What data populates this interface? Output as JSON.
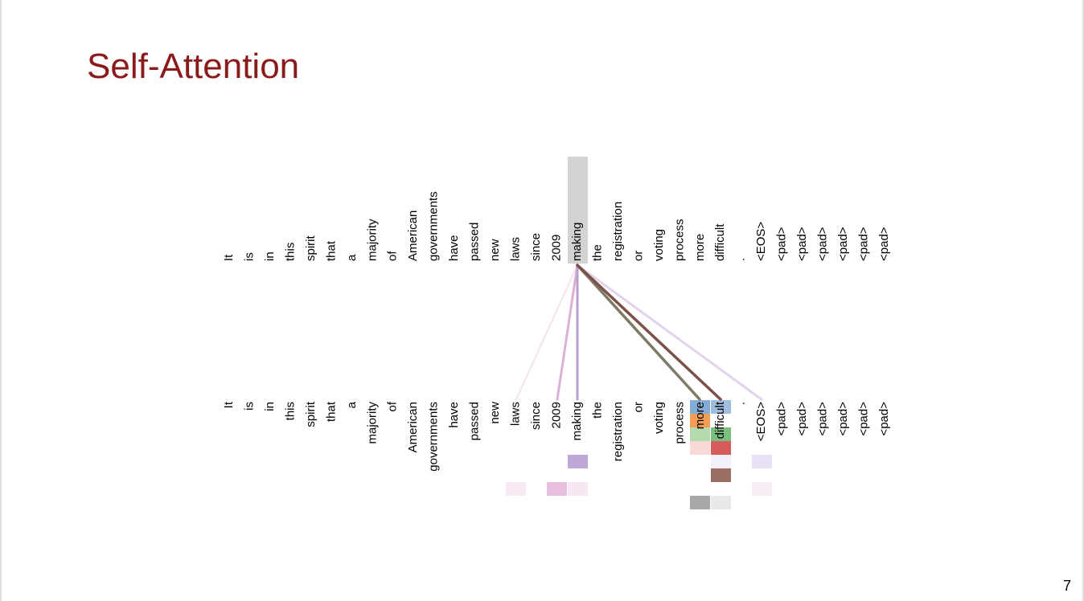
{
  "title": "Self-Attention",
  "tokens": [
    "It",
    "is",
    "in",
    "this",
    "spirit",
    "that",
    "a",
    "majority",
    "of",
    "American",
    "governments",
    "have",
    "passed",
    "new",
    "laws",
    "since",
    "2009",
    "making",
    "the",
    "registration",
    "or",
    "voting",
    "process",
    "more",
    "difficult",
    ".",
    "<EOS>",
    "<pad>",
    "<pad>",
    "<pad>",
    "<pad>",
    "<pad>",
    "<pad>"
  ],
  "page_number": "7"
}
